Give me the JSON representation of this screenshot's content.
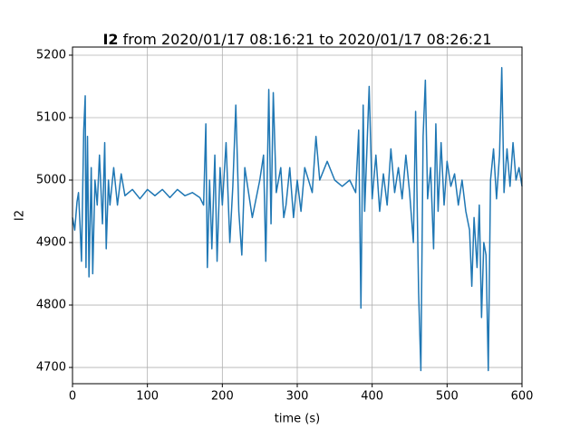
{
  "chart_data": {
    "type": "line",
    "title_variable": "I2",
    "title_rest": "from 2020/01/17 08:16:21 to 2020/01/17 08:26:21",
    "xlabel": "time (s)",
    "ylabel": "I2",
    "xlim": [
      0,
      600
    ],
    "ylim": [
      4674,
      5213
    ],
    "xticks": [
      0,
      100,
      200,
      300,
      400,
      500,
      600
    ],
    "yticks": [
      4700,
      4800,
      4900,
      5000,
      5100,
      5200
    ],
    "grid": true,
    "series": [
      {
        "color": "#1f77b4",
        "x": [
          0,
          3,
          6,
          8,
          10,
          12,
          15,
          17,
          18,
          20,
          22,
          25,
          27,
          30,
          33,
          36,
          40,
          43,
          45,
          48,
          50,
          55,
          60,
          65,
          70,
          80,
          90,
          100,
          110,
          120,
          130,
          140,
          150,
          160,
          170,
          175,
          178,
          180,
          183,
          186,
          190,
          193,
          197,
          200,
          205,
          210,
          214,
          218,
          222,
          226,
          230,
          240,
          250,
          255,
          258,
          262,
          265,
          268,
          272,
          278,
          282,
          285,
          290,
          295,
          300,
          305,
          310,
          320,
          325,
          330,
          340,
          350,
          360,
          370,
          378,
          382,
          385,
          388,
          390,
          393,
          396,
          400,
          405,
          410,
          415,
          420,
          425,
          430,
          435,
          440,
          445,
          450,
          455,
          458,
          462,
          465,
          468,
          471,
          474,
          478,
          482,
          485,
          488,
          492,
          496,
          500,
          505,
          510,
          515,
          520,
          525,
          530,
          533,
          536,
          540,
          543,
          546,
          549,
          552,
          555,
          558,
          562,
          566,
          570,
          573,
          576,
          580,
          584,
          588,
          592,
          596,
          600
        ],
        "values": [
          4940,
          4920,
          4965,
          4980,
          4930,
          4870,
          5080,
          5135,
          4860,
          5070,
          4845,
          5020,
          4850,
          5000,
          4960,
          5040,
          4930,
          5060,
          4890,
          5000,
          4960,
          5020,
          4960,
          5010,
          4975,
          4985,
          4970,
          4985,
          4975,
          4985,
          4972,
          4985,
          4975,
          4980,
          4972,
          4960,
          5090,
          4860,
          5000,
          4890,
          5040,
          4870,
          5020,
          4960,
          5060,
          4900,
          4990,
          5120,
          4950,
          4880,
          5020,
          4940,
          5000,
          5040,
          4870,
          5145,
          4930,
          5140,
          4980,
          5020,
          4940,
          4960,
          5020,
          4940,
          5000,
          4950,
          5020,
          4980,
          5070,
          5000,
          5030,
          5000,
          4990,
          5000,
          4980,
          5080,
          4795,
          5120,
          4950,
          5050,
          5150,
          4970,
          5040,
          4950,
          5010,
          4960,
          5050,
          4980,
          5020,
          4970,
          5040,
          4980,
          4900,
          5110,
          4820,
          4695,
          5070,
          5160,
          4970,
          5020,
          4890,
          5090,
          4950,
          5060,
          4960,
          5030,
          4990,
          5010,
          4960,
          5000,
          4950,
          4920,
          4830,
          4940,
          4860,
          4960,
          4780,
          4900,
          4880,
          4695,
          5000,
          5050,
          4970,
          5040,
          5180,
          4980,
          5050,
          4990,
          5060,
          5000,
          5020,
          4990
        ]
      }
    ]
  }
}
